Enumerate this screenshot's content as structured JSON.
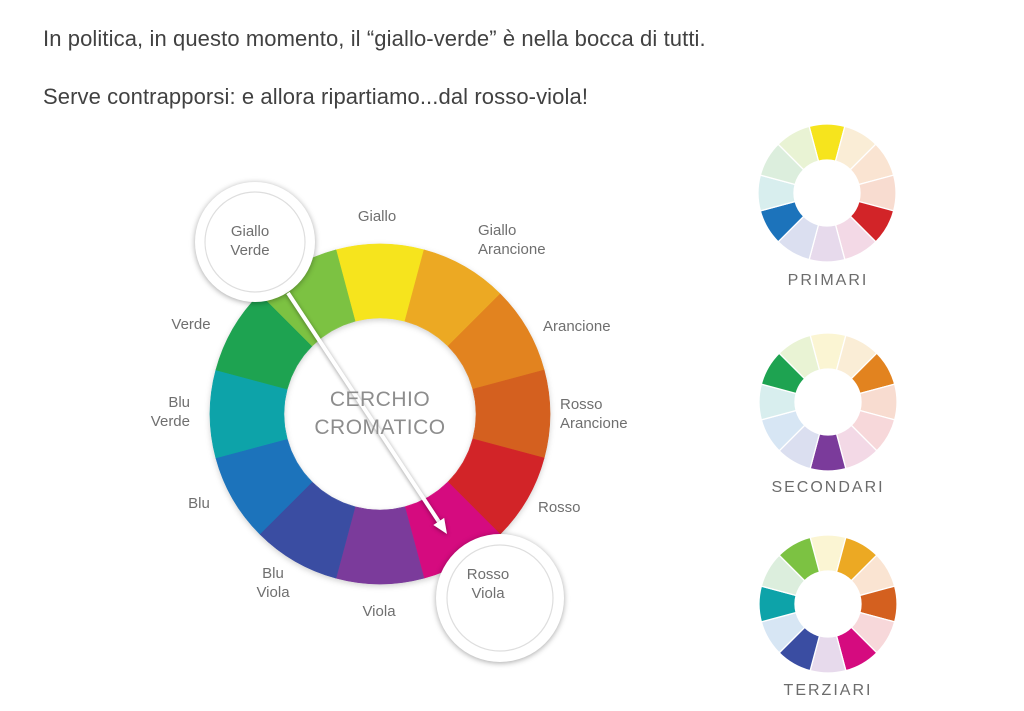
{
  "intro": {
    "line1": "In politica, in questo momento, il “giallo-verde” è nella bocca di tutti.",
    "line2": "Serve contrapporsi: e allora ripartiamo...dal rosso-viola!"
  },
  "wheel": {
    "title": "CERCHIO\nCROMATICO",
    "segments": [
      {
        "name": "Giallo",
        "color": "#F6E41D",
        "pale": "#FBF5D3"
      },
      {
        "name": "Giallo Arancione",
        "color": "#ECA923",
        "pale": "#FAEDD6"
      },
      {
        "name": "Arancione",
        "color": "#E2831F",
        "pale": "#FAE4D2"
      },
      {
        "name": "Rosso Arancione",
        "color": "#D4601F",
        "pale": "#F8DCD0"
      },
      {
        "name": "Rosso",
        "color": "#D22428",
        "pale": "#F7D8DA"
      },
      {
        "name": "Rosso Viola",
        "color": "#D50B7F",
        "pale": "#F3D9E6"
      },
      {
        "name": "Viola",
        "color": "#7B3B9B",
        "pale": "#E7DAEC"
      },
      {
        "name": "Blu Viola",
        "color": "#3A4DA2",
        "pale": "#DBDFF0"
      },
      {
        "name": "Blu",
        "color": "#1C73BB",
        "pale": "#D7E6F4"
      },
      {
        "name": "Blu Verde",
        "color": "#0DA3A9",
        "pale": "#D8EEEE"
      },
      {
        "name": "Verde",
        "color": "#1EA351",
        "pale": "#DCEEDD"
      },
      {
        "name": "Giallo Verde",
        "color": "#7CC242",
        "pale": "#E9F3D4"
      }
    ]
  },
  "annotation": {
    "from": "Giallo Verde",
    "to": "Rosso Viola",
    "ring_color": "#ffffff",
    "arrow_color": "#ffffff"
  },
  "mini_wheels": [
    {
      "caption": "PRIMARI",
      "highlighted": [
        "Giallo",
        "Rosso",
        "Blu"
      ]
    },
    {
      "caption": "SECONDARI",
      "highlighted": [
        "Arancione",
        "Viola",
        "Verde"
      ]
    },
    {
      "caption": "TERZIARI",
      "highlighted": [
        "Giallo Arancione",
        "Rosso Arancione",
        "Rosso Viola",
        "Blu Viola",
        "Blu Verde",
        "Giallo Verde"
      ]
    }
  ],
  "text_colors": {
    "intro": "#414141",
    "labels": "#6f6f6f",
    "center": "#8d8d8d",
    "captions": "#6c6c6c"
  }
}
